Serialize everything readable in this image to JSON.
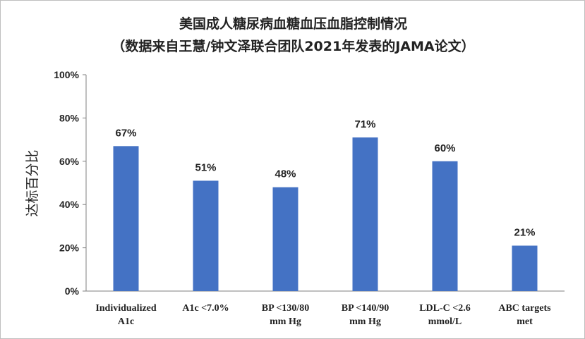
{
  "chart_data": {
    "type": "bar",
    "title": "美国成人糖尿病血糖血压血脂控制情况",
    "subtitle": "（数据来自王慧/钟文泽联合团队2021年发表的JAMA论文）",
    "ylabel": "达标百分比",
    "xlabel": "",
    "ylim": [
      0,
      100
    ],
    "yticks": [
      "0%",
      "20%",
      "40%",
      "60%",
      "80%",
      "100%"
    ],
    "categories": [
      [
        "Individualized",
        "A1c"
      ],
      [
        "A1c <7.0%"
      ],
      [
        "BP <130/80",
        "mm Hg"
      ],
      [
        "BP <140/90",
        "mm Hg"
      ],
      [
        "LDL-C <2.6",
        "mmol/L"
      ],
      [
        "ABC targets",
        "met"
      ]
    ],
    "values": [
      67,
      51,
      48,
      71,
      60,
      21
    ],
    "data_labels": [
      "67%",
      "51%",
      "48%",
      "71%",
      "60%",
      "21%"
    ],
    "bar_color": "#4472C4",
    "grid": false,
    "legend": "none"
  }
}
